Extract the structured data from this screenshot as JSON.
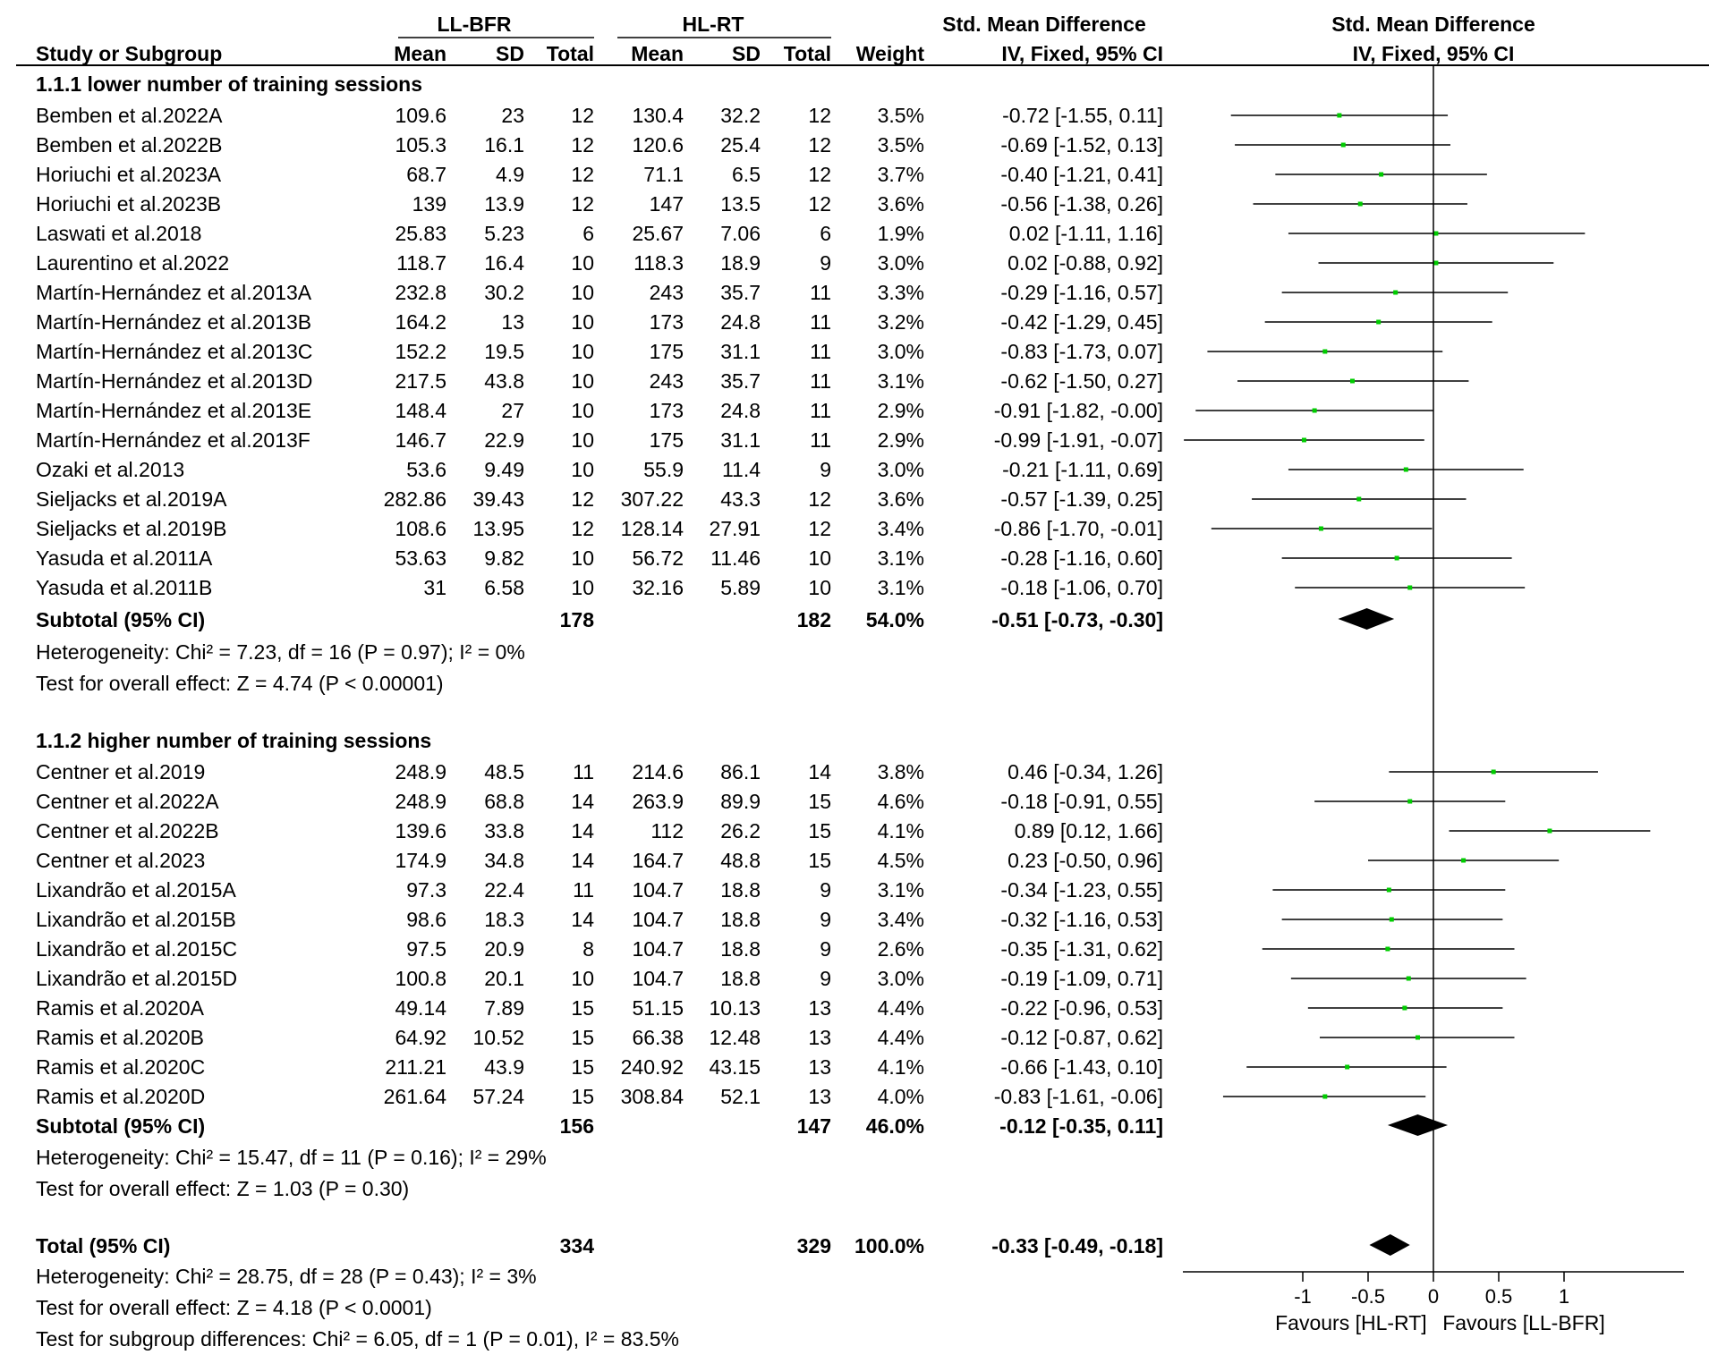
{
  "header": {
    "group1": "LL-BFR",
    "group2": "HL-RT",
    "effect_title": "Std. Mean Difference",
    "effect_method": "IV, Fixed, 95% CI",
    "plot_title": "Std. Mean Difference",
    "plot_method": "IV, Fixed, 95% CI",
    "col_study": "Study or Subgroup",
    "col_mean1": "Mean",
    "col_sd1": "SD",
    "col_total1": "Total",
    "col_mean2": "Mean",
    "col_sd2": "SD",
    "col_total2": "Total",
    "col_weight": "Weight"
  },
  "colors": {
    "point": "#00cc00",
    "line": "#000000"
  },
  "chart_data": {
    "type": "forest",
    "xlim": [
      -2,
      2
    ],
    "xticks": [
      "-1",
      "-0.5",
      "0",
      "0.5",
      "1"
    ],
    "xtick_values": [
      -1,
      -0.5,
      0,
      0.5,
      1
    ],
    "xlabel_left": "Favours [HL-RT]",
    "xlabel_right": "Favours [LL-BFR]",
    "subgroups": [
      {
        "title": "1.1.1 lower number of training sessions",
        "studies": [
          {
            "name": "Bemben et al.2022A",
            "m1": "109.6",
            "sd1": "23",
            "n1": "12",
            "m2": "130.4",
            "sd2": "32.2",
            "n2": "12",
            "w": "3.5%",
            "ci": "-0.72 [-1.55, 0.11]",
            "est": -0.72,
            "lo": -1.55,
            "hi": 0.11
          },
          {
            "name": "Bemben et al.2022B",
            "m1": "105.3",
            "sd1": "16.1",
            "n1": "12",
            "m2": "120.6",
            "sd2": "25.4",
            "n2": "12",
            "w": "3.5%",
            "ci": "-0.69 [-1.52, 0.13]",
            "est": -0.69,
            "lo": -1.52,
            "hi": 0.13
          },
          {
            "name": "Horiuchi et al.2023A",
            "m1": "68.7",
            "sd1": "4.9",
            "n1": "12",
            "m2": "71.1",
            "sd2": "6.5",
            "n2": "12",
            "w": "3.7%",
            "ci": "-0.40 [-1.21, 0.41]",
            "est": -0.4,
            "lo": -1.21,
            "hi": 0.41
          },
          {
            "name": "Horiuchi et al.2023B",
            "m1": "139",
            "sd1": "13.9",
            "n1": "12",
            "m2": "147",
            "sd2": "13.5",
            "n2": "12",
            "w": "3.6%",
            "ci": "-0.56 [-1.38, 0.26]",
            "est": -0.56,
            "lo": -1.38,
            "hi": 0.26
          },
          {
            "name": "Laswati et al.2018",
            "m1": "25.83",
            "sd1": "5.23",
            "n1": "6",
            "m2": "25.67",
            "sd2": "7.06",
            "n2": "6",
            "w": "1.9%",
            "ci": "0.02 [-1.11, 1.16]",
            "est": 0.02,
            "lo": -1.11,
            "hi": 1.16
          },
          {
            "name": "Laurentino et al.2022",
            "m1": "118.7",
            "sd1": "16.4",
            "n1": "10",
            "m2": "118.3",
            "sd2": "18.9",
            "n2": "9",
            "w": "3.0%",
            "ci": "0.02 [-0.88, 0.92]",
            "est": 0.02,
            "lo": -0.88,
            "hi": 0.92
          },
          {
            "name": "Martín-Hernández et al.2013A",
            "m1": "232.8",
            "sd1": "30.2",
            "n1": "10",
            "m2": "243",
            "sd2": "35.7",
            "n2": "11",
            "w": "3.3%",
            "ci": "-0.29 [-1.16, 0.57]",
            "est": -0.29,
            "lo": -1.16,
            "hi": 0.57
          },
          {
            "name": "Martín-Hernández et al.2013B",
            "m1": "164.2",
            "sd1": "13",
            "n1": "10",
            "m2": "173",
            "sd2": "24.8",
            "n2": "11",
            "w": "3.2%",
            "ci": "-0.42 [-1.29, 0.45]",
            "est": -0.42,
            "lo": -1.29,
            "hi": 0.45
          },
          {
            "name": "Martín-Hernández et al.2013C",
            "m1": "152.2",
            "sd1": "19.5",
            "n1": "10",
            "m2": "175",
            "sd2": "31.1",
            "n2": "11",
            "w": "3.0%",
            "ci": "-0.83 [-1.73, 0.07]",
            "est": -0.83,
            "lo": -1.73,
            "hi": 0.07
          },
          {
            "name": "Martín-Hernández et al.2013D",
            "m1": "217.5",
            "sd1": "43.8",
            "n1": "10",
            "m2": "243",
            "sd2": "35.7",
            "n2": "11",
            "w": "3.1%",
            "ci": "-0.62 [-1.50, 0.27]",
            "est": -0.62,
            "lo": -1.5,
            "hi": 0.27
          },
          {
            "name": "Martín-Hernández et al.2013E",
            "m1": "148.4",
            "sd1": "27",
            "n1": "10",
            "m2": "173",
            "sd2": "24.8",
            "n2": "11",
            "w": "2.9%",
            "ci": "-0.91 [-1.82, -0.00]",
            "est": -0.91,
            "lo": -1.82,
            "hi": 0.0
          },
          {
            "name": "Martín-Hernández et al.2013F",
            "m1": "146.7",
            "sd1": "22.9",
            "n1": "10",
            "m2": "175",
            "sd2": "31.1",
            "n2": "11",
            "w": "2.9%",
            "ci": "-0.99 [-1.91, -0.07]",
            "est": -0.99,
            "lo": -1.91,
            "hi": -0.07
          },
          {
            "name": "Ozaki et al.2013",
            "m1": "53.6",
            "sd1": "9.49",
            "n1": "10",
            "m2": "55.9",
            "sd2": "11.4",
            "n2": "9",
            "w": "3.0%",
            "ci": "-0.21 [-1.11, 0.69]",
            "est": -0.21,
            "lo": -1.11,
            "hi": 0.69
          },
          {
            "name": "Sieljacks et al.2019A",
            "m1": "282.86",
            "sd1": "39.43",
            "n1": "12",
            "m2": "307.22",
            "sd2": "43.3",
            "n2": "12",
            "w": "3.6%",
            "ci": "-0.57 [-1.39, 0.25]",
            "est": -0.57,
            "lo": -1.39,
            "hi": 0.25
          },
          {
            "name": "Sieljacks et al.2019B",
            "m1": "108.6",
            "sd1": "13.95",
            "n1": "12",
            "m2": "128.14",
            "sd2": "27.91",
            "n2": "12",
            "w": "3.4%",
            "ci": "-0.86 [-1.70, -0.01]",
            "est": -0.86,
            "lo": -1.7,
            "hi": -0.01
          },
          {
            "name": "Yasuda et al.2011A",
            "m1": "53.63",
            "sd1": "9.82",
            "n1": "10",
            "m2": "56.72",
            "sd2": "11.46",
            "n2": "10",
            "w": "3.1%",
            "ci": "-0.28 [-1.16, 0.60]",
            "est": -0.28,
            "lo": -1.16,
            "hi": 0.6
          },
          {
            "name": "Yasuda et al.2011B",
            "m1": "31",
            "sd1": "6.58",
            "n1": "10",
            "m2": "32.16",
            "sd2": "5.89",
            "n2": "10",
            "w": "3.1%",
            "ci": "-0.18 [-1.06, 0.70]",
            "est": -0.18,
            "lo": -1.06,
            "hi": 0.7
          }
        ],
        "subtotal": {
          "label": "Subtotal (95% CI)",
          "n1": "178",
          "n2": "182",
          "w": "54.0%",
          "ci": "-0.51 [-0.73, -0.30]",
          "est": -0.51,
          "lo": -0.73,
          "hi": -0.3
        },
        "heterogeneity": "Heterogeneity: Chi² = 7.23, df = 16 (P = 0.97); I² = 0%",
        "overall": "Test for overall effect: Z = 4.74 (P < 0.00001)"
      },
      {
        "title": "1.1.2 higher number of training sessions",
        "studies": [
          {
            "name": "Centner et al.2019",
            "m1": "248.9",
            "sd1": "48.5",
            "n1": "11",
            "m2": "214.6",
            "sd2": "86.1",
            "n2": "14",
            "w": "3.8%",
            "ci": "0.46 [-0.34, 1.26]",
            "est": 0.46,
            "lo": -0.34,
            "hi": 1.26
          },
          {
            "name": "Centner et al.2022A",
            "m1": "248.9",
            "sd1": "68.8",
            "n1": "14",
            "m2": "263.9",
            "sd2": "89.9",
            "n2": "15",
            "w": "4.6%",
            "ci": "-0.18 [-0.91, 0.55]",
            "est": -0.18,
            "lo": -0.91,
            "hi": 0.55
          },
          {
            "name": "Centner et al.2022B",
            "m1": "139.6",
            "sd1": "33.8",
            "n1": "14",
            "m2": "112",
            "sd2": "26.2",
            "n2": "15",
            "w": "4.1%",
            "ci": "0.89 [0.12, 1.66]",
            "est": 0.89,
            "lo": 0.12,
            "hi": 1.66
          },
          {
            "name": "Centner et al.2023",
            "m1": "174.9",
            "sd1": "34.8",
            "n1": "14",
            "m2": "164.7",
            "sd2": "48.8",
            "n2": "15",
            "w": "4.5%",
            "ci": "0.23 [-0.50, 0.96]",
            "est": 0.23,
            "lo": -0.5,
            "hi": 0.96
          },
          {
            "name": "Lixandrão et al.2015A",
            "m1": "97.3",
            "sd1": "22.4",
            "n1": "11",
            "m2": "104.7",
            "sd2": "18.8",
            "n2": "9",
            "w": "3.1%",
            "ci": "-0.34 [-1.23, 0.55]",
            "est": -0.34,
            "lo": -1.23,
            "hi": 0.55
          },
          {
            "name": "Lixandrão et al.2015B",
            "m1": "98.6",
            "sd1": "18.3",
            "n1": "14",
            "m2": "104.7",
            "sd2": "18.8",
            "n2": "9",
            "w": "3.4%",
            "ci": "-0.32 [-1.16, 0.53]",
            "est": -0.32,
            "lo": -1.16,
            "hi": 0.53
          },
          {
            "name": "Lixandrão et al.2015C",
            "m1": "97.5",
            "sd1": "20.9",
            "n1": "8",
            "m2": "104.7",
            "sd2": "18.8",
            "n2": "9",
            "w": "2.6%",
            "ci": "-0.35 [-1.31, 0.62]",
            "est": -0.35,
            "lo": -1.31,
            "hi": 0.62
          },
          {
            "name": "Lixandrão et al.2015D",
            "m1": "100.8",
            "sd1": "20.1",
            "n1": "10",
            "m2": "104.7",
            "sd2": "18.8",
            "n2": "9",
            "w": "3.0%",
            "ci": "-0.19 [-1.09, 0.71]",
            "est": -0.19,
            "lo": -1.09,
            "hi": 0.71
          },
          {
            "name": "Ramis et al.2020A",
            "m1": "49.14",
            "sd1": "7.89",
            "n1": "15",
            "m2": "51.15",
            "sd2": "10.13",
            "n2": "13",
            "w": "4.4%",
            "ci": "-0.22 [-0.96, 0.53]",
            "est": -0.22,
            "lo": -0.96,
            "hi": 0.53
          },
          {
            "name": "Ramis et al.2020B",
            "m1": "64.92",
            "sd1": "10.52",
            "n1": "15",
            "m2": "66.38",
            "sd2": "12.48",
            "n2": "13",
            "w": "4.4%",
            "ci": "-0.12 [-0.87, 0.62]",
            "est": -0.12,
            "lo": -0.87,
            "hi": 0.62
          },
          {
            "name": "Ramis et al.2020C",
            "m1": "211.21",
            "sd1": "43.9",
            "n1": "15",
            "m2": "240.92",
            "sd2": "43.15",
            "n2": "13",
            "w": "4.1%",
            "ci": "-0.66 [-1.43, 0.10]",
            "est": -0.66,
            "lo": -1.43,
            "hi": 0.1
          },
          {
            "name": "Ramis et al.2020D",
            "m1": "261.64",
            "sd1": "57.24",
            "n1": "15",
            "m2": "308.84",
            "sd2": "52.1",
            "n2": "13",
            "w": "4.0%",
            "ci": "-0.83 [-1.61, -0.06]",
            "est": -0.83,
            "lo": -1.61,
            "hi": -0.06
          }
        ],
        "subtotal": {
          "label": "Subtotal (95% CI)",
          "n1": "156",
          "n2": "147",
          "w": "46.0%",
          "ci": "-0.12 [-0.35, 0.11]",
          "est": -0.12,
          "lo": -0.35,
          "hi": 0.11
        },
        "heterogeneity": "Heterogeneity: Chi² = 15.47, df = 11 (P = 0.16); I² = 29%",
        "overall": "Test for overall effect: Z = 1.03 (P = 0.30)"
      }
    ],
    "total": {
      "label": "Total (95% CI)",
      "n1": "334",
      "n2": "329",
      "w": "100.0%",
      "ci": "-0.33 [-0.49, -0.18]",
      "est": -0.33,
      "lo": -0.49,
      "hi": -0.18
    },
    "footer": [
      "Heterogeneity: Chi² = 28.75, df = 28 (P = 0.43); I² = 3%",
      "Test for overall effect: Z = 4.18 (P < 0.0001)",
      "Test for subgroup differences: Chi² = 6.05, df = 1 (P = 0.01), I² = 83.5%"
    ]
  }
}
